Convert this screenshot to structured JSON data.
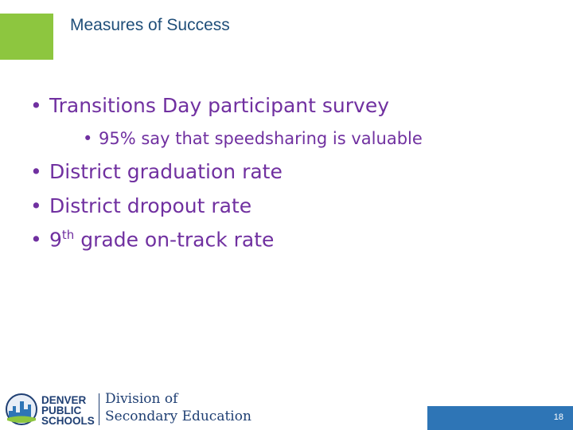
{
  "header": {
    "title": "Measures of Success"
  },
  "bullets": [
    {
      "text": "Transitions Day participant survey",
      "sub": [
        "95% say that speedsharing is valuable"
      ]
    },
    {
      "text": "District graduation rate"
    },
    {
      "text": "District dropout rate"
    },
    {
      "prefix": "9",
      "sup": "th",
      "text": " grade on-track rate"
    }
  ],
  "footer": {
    "logo": [
      "DENVER",
      "PUBLIC",
      "SCHOOLS"
    ],
    "division": [
      "Division of",
      "Secondary Education"
    ],
    "page_number": 18
  }
}
